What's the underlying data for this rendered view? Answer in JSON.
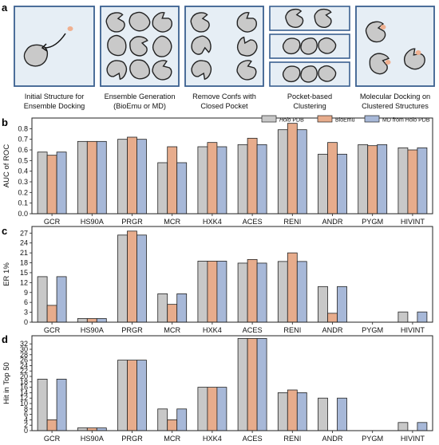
{
  "panel_labels": {
    "a": "a",
    "b": "b",
    "c": "c",
    "d": "d"
  },
  "workflow": {
    "steps": [
      {
        "lines": [
          "Initial Structure for",
          "Ensemble Docking"
        ]
      },
      {
        "lines": [
          "Ensemble Generation",
          "(BioEmu or MD)"
        ]
      },
      {
        "lines": [
          "Remove Confs with",
          "Closed Pocket"
        ]
      },
      {
        "lines": [
          "Pocket-based",
          "Clustering"
        ]
      },
      {
        "lines": [
          "Molecular Docking on",
          "Clustered Structures"
        ]
      }
    ]
  },
  "colors": {
    "holo": "#c8c8c8",
    "bioemu": "#e7ac8c",
    "md": "#a7b8d8",
    "panel_bg": "#e6eef5",
    "panel_border": "#3a5f8f",
    "pocket": "#f0b090"
  },
  "legend": [
    {
      "italic": "Holo",
      "text": " PDB",
      "color": "holo"
    },
    {
      "italic": "",
      "text": "BioEmu",
      "color": "bioemu"
    },
    {
      "italic": "",
      "text": "MD from Holo PDB",
      "color": "md"
    }
  ],
  "chart_data": [
    {
      "panel": "b",
      "type": "bar",
      "categories": [
        "GCR",
        "HS90A",
        "PRGR",
        "MCR",
        "HXK4",
        "ACES",
        "RENI",
        "ANDR",
        "PYGM",
        "HIVINT"
      ],
      "ylabel": "AUC of ROC",
      "ylim": [
        0,
        0.9
      ],
      "yticks": [
        0.0,
        0.1,
        0.2,
        0.3,
        0.4,
        0.5,
        0.6,
        0.7,
        0.8
      ],
      "ytick_labels": [
        "0.0",
        "0.1",
        "0.2",
        "0.3",
        "0.4",
        "0.5",
        "0.6",
        "0.7",
        "0.8"
      ],
      "legend_position": "top-right",
      "series": [
        {
          "name": "Holo PDB",
          "values": [
            0.58,
            0.68,
            0.7,
            0.48,
            0.63,
            0.65,
            0.79,
            0.56,
            0.65,
            0.62
          ]
        },
        {
          "name": "BioEmu",
          "values": [
            0.55,
            0.68,
            0.72,
            0.63,
            0.67,
            0.71,
            0.85,
            0.67,
            0.64,
            0.6
          ]
        },
        {
          "name": "MD from Holo PDB",
          "values": [
            0.58,
            0.68,
            0.7,
            0.48,
            0.63,
            0.65,
            0.79,
            0.56,
            0.65,
            0.62
          ]
        }
      ]
    },
    {
      "panel": "c",
      "type": "bar",
      "categories": [
        "GCR",
        "HS90A",
        "PRGR",
        "MCR",
        "HXK4",
        "ACES",
        "RENI",
        "ANDR",
        "PYGM",
        "HIVINT"
      ],
      "ylabel": "ER 1%",
      "ylim": [
        0,
        29
      ],
      "yticks": [
        0,
        3,
        6,
        9,
        12,
        15,
        18,
        21,
        24,
        27
      ],
      "ytick_labels": [
        "0",
        "3",
        "6",
        "9",
        "12",
        "15",
        "18",
        "21",
        "24",
        "27"
      ],
      "series": [
        {
          "name": "Holo PDB",
          "values": [
            13.8,
            1.1,
            26.4,
            8.6,
            18.5,
            17.9,
            18.4,
            10.8,
            0,
            3.1
          ]
        },
        {
          "name": "BioEmu",
          "values": [
            5.1,
            1.1,
            27.6,
            5.4,
            18.5,
            19.0,
            21.0,
            2.7,
            0,
            0
          ]
        },
        {
          "name": "MD from Holo PDB",
          "values": [
            13.8,
            1.1,
            26.4,
            8.6,
            18.5,
            17.9,
            18.4,
            10.8,
            0,
            3.1
          ]
        }
      ]
    },
    {
      "panel": "d",
      "type": "bar",
      "categories": [
        "GCR",
        "HS90A",
        "PRGR",
        "MCR",
        "HXK4",
        "ACES",
        "RENI",
        "ANDR",
        "PYGM",
        "HIVINT"
      ],
      "ylabel": "Hit in Top 50",
      "ylim": [
        0,
        35
      ],
      "yticks": [
        0,
        2,
        4,
        6,
        8,
        10,
        12,
        14,
        16,
        18,
        20,
        22,
        24,
        26,
        28,
        30,
        32
      ],
      "ytick_labels": [
        "0",
        "2",
        "4",
        "6",
        "8",
        "10",
        "12",
        "14",
        "16",
        "18",
        "20",
        "22",
        "24",
        "26",
        "28",
        "30",
        "32"
      ],
      "series": [
        {
          "name": "Holo PDB",
          "values": [
            19,
            1,
            26,
            8,
            16,
            34,
            14,
            12,
            0,
            3
          ]
        },
        {
          "name": "BioEmu",
          "values": [
            4,
            1,
            26,
            4,
            16,
            34,
            15,
            0,
            0,
            0
          ]
        },
        {
          "name": "MD from Holo PDB",
          "values": [
            19,
            1,
            26,
            8,
            16,
            34,
            14,
            12,
            0,
            3
          ]
        }
      ]
    }
  ]
}
